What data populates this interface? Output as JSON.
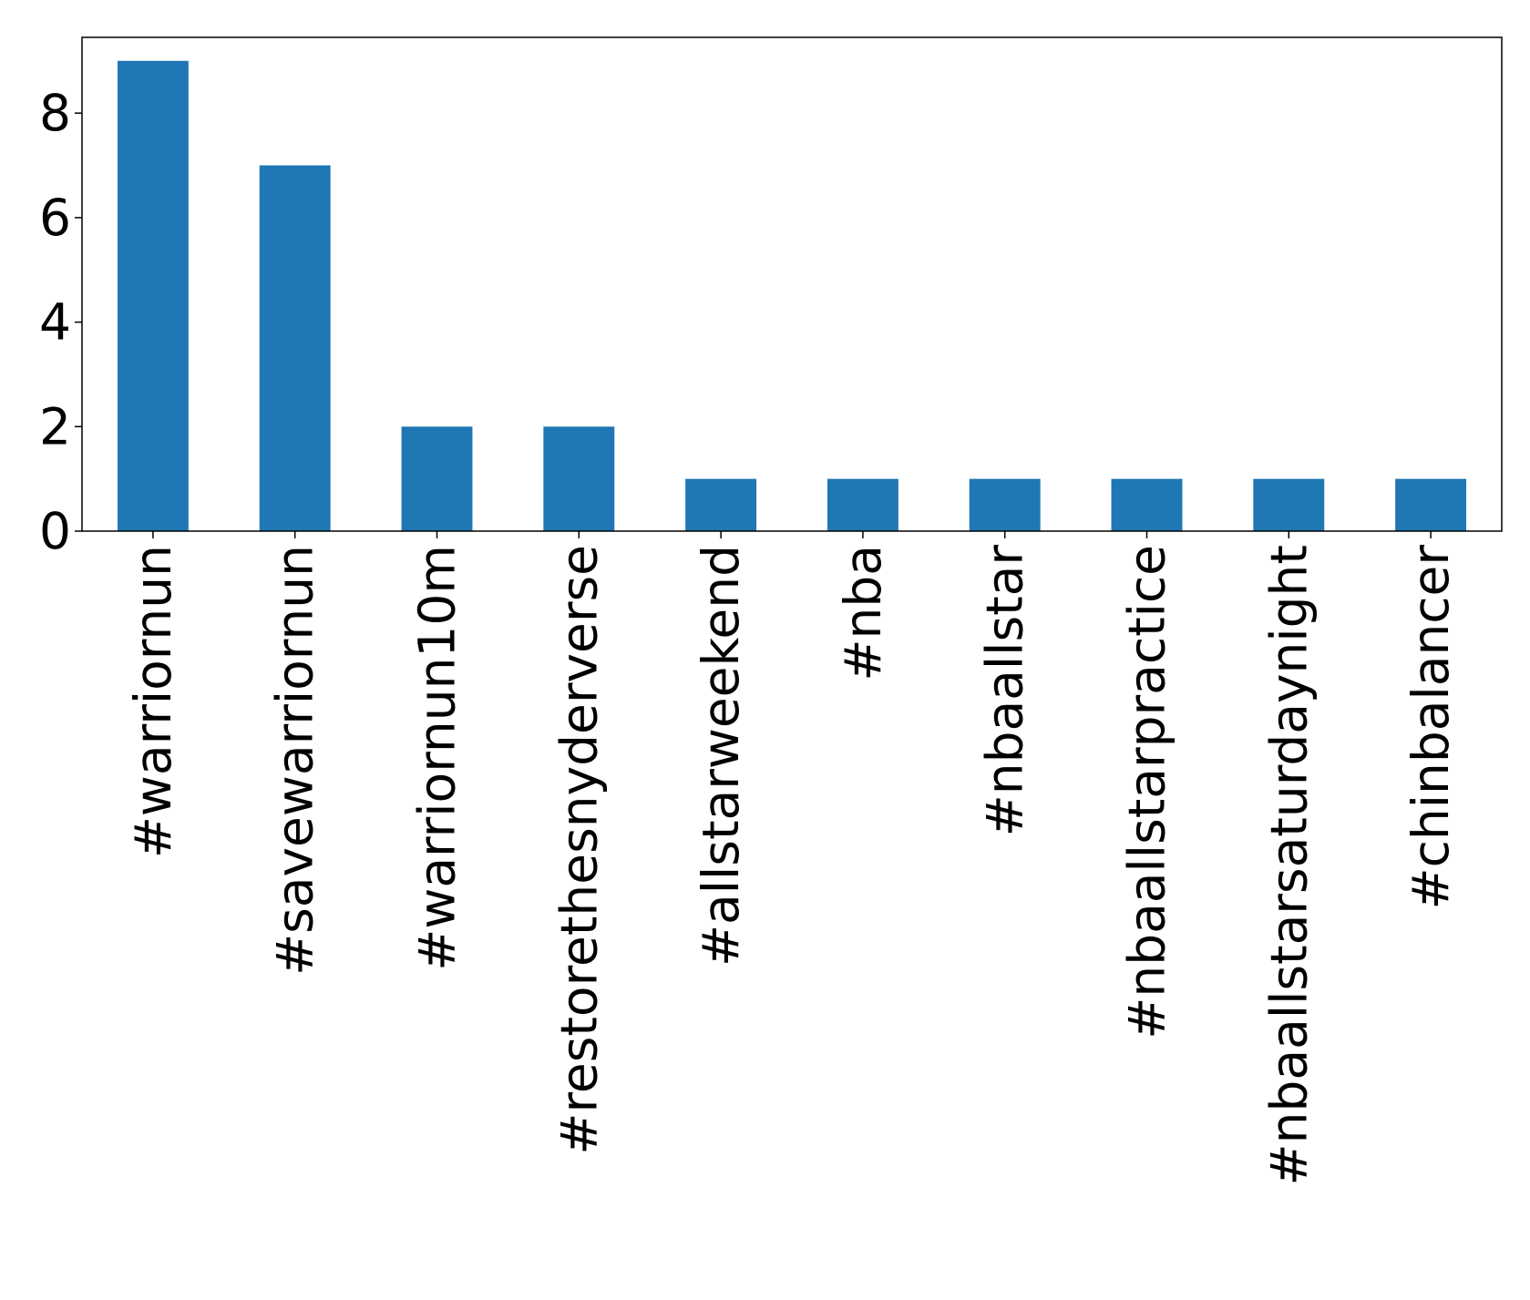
{
  "chart_data": {
    "type": "bar",
    "title": "",
    "xlabel": "",
    "ylabel": "",
    "categories": [
      "#warriornun",
      "#savewarriornun",
      "#warriornun10m",
      "#restorethesnyderverse",
      "#allstarweekend",
      "#nba",
      "#nbaallstar",
      "#nbaallstarpractice",
      "#nbaallstarsaturdaynight",
      "#chinbalancer"
    ],
    "values": [
      9,
      7,
      2,
      2,
      1,
      1,
      1,
      1,
      1,
      1
    ],
    "ylim": [
      0,
      9.45
    ],
    "yticks": [
      0,
      2,
      4,
      6,
      8
    ],
    "grid": false,
    "legend": "none",
    "bar_color": "#1f77b4"
  }
}
